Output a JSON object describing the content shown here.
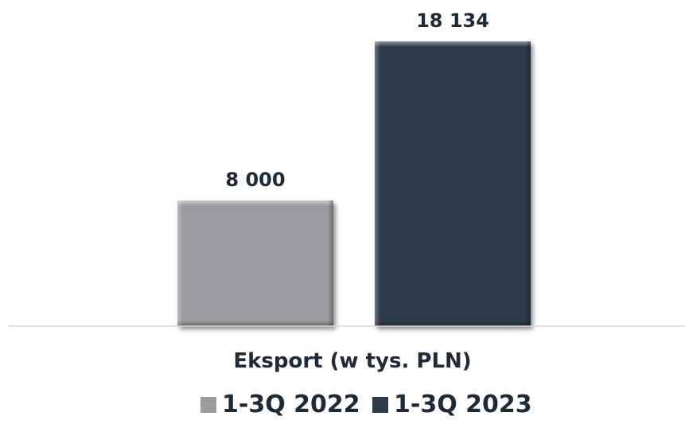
{
  "chart_data": {
    "type": "bar",
    "categories": [
      "Eksport (w tys. PLN)"
    ],
    "series": [
      {
        "name": "1-3Q 2022",
        "values": [
          8000
        ],
        "value_label": "8 000",
        "color": "#9a9ca0"
      },
      {
        "name": "1-3Q 2023",
        "values": [
          18134
        ],
        "value_label": "18 134",
        "color": "#2e3b4b"
      }
    ],
    "ylim": [
      0,
      18134
    ],
    "grid": false,
    "legend": "bottom"
  }
}
